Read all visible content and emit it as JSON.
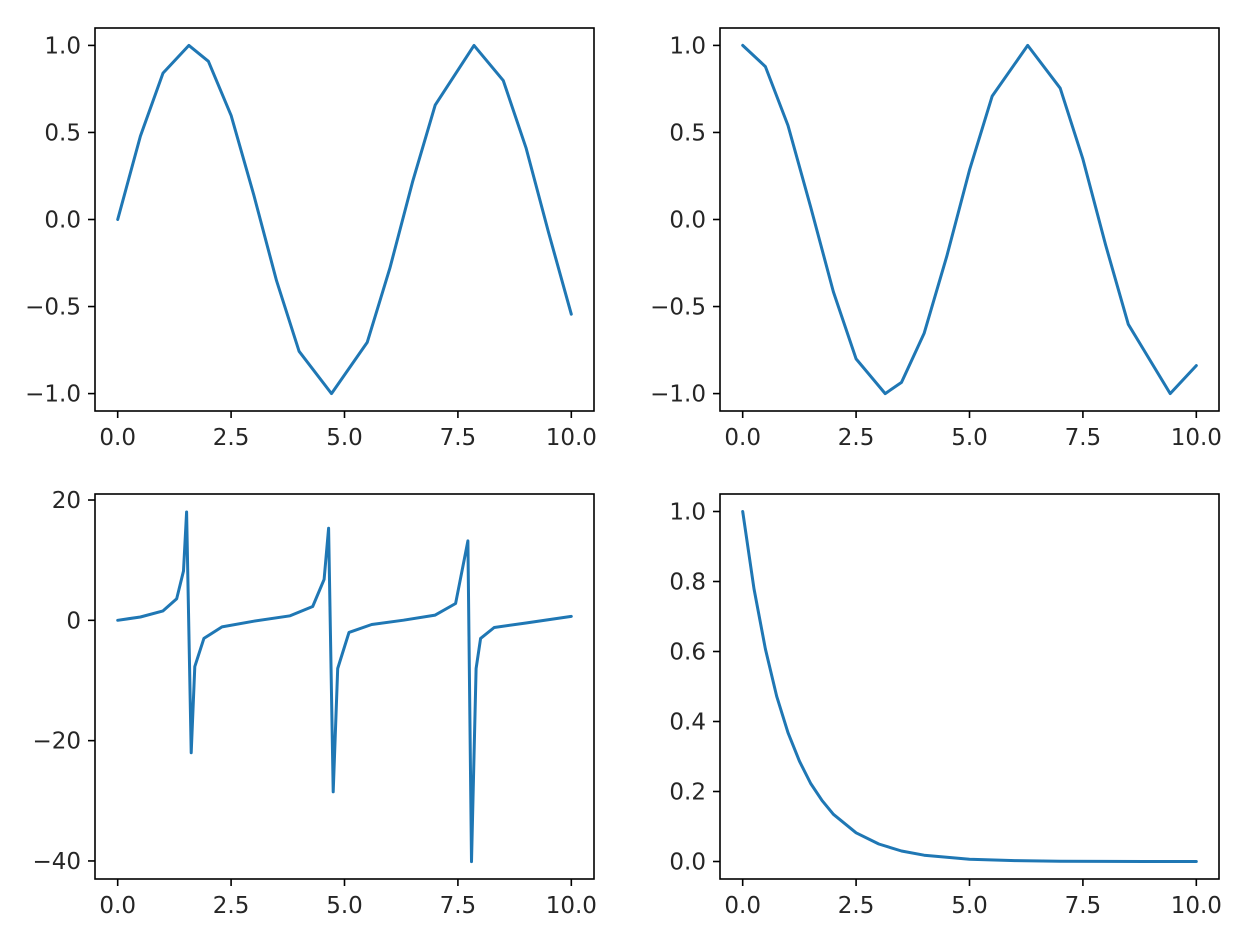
{
  "chart_data": [
    {
      "type": "line",
      "xlim": [
        -0.5,
        10.5
      ],
      "ylim": [
        -1.1,
        1.1
      ],
      "x_ticks": [
        0,
        2.5,
        5,
        7.5,
        10
      ],
      "y_ticks": [
        -1,
        -0.5,
        0,
        0.5,
        1
      ],
      "x_tick_labels": [
        "0.0",
        "2.5",
        "5.0",
        "7.5",
        "10.0"
      ],
      "y_tick_labels": [
        "−1.0",
        "−0.5",
        "0.0",
        "0.5",
        "1.0"
      ],
      "color": "#1f77b4",
      "x": [
        0.0,
        0.5,
        1.0,
        1.5708,
        2.0,
        2.5,
        3.0,
        3.5,
        4.0,
        4.7124,
        5.5,
        6.0,
        6.5,
        7.0,
        7.854,
        8.5,
        9.0,
        9.5,
        10.0
      ],
      "y": [
        0.0,
        0.479,
        0.841,
        1.0,
        0.909,
        0.598,
        0.141,
        -0.351,
        -0.757,
        -1.0,
        -0.706,
        -0.279,
        0.215,
        0.657,
        1.0,
        0.798,
        0.412,
        -0.075,
        -0.544
      ]
    },
    {
      "type": "line",
      "xlim": [
        -0.5,
        10.5
      ],
      "ylim": [
        -1.1,
        1.1
      ],
      "x_ticks": [
        0,
        2.5,
        5,
        7.5,
        10
      ],
      "y_ticks": [
        -1,
        -0.5,
        0,
        0.5,
        1
      ],
      "x_tick_labels": [
        "0.0",
        "2.5",
        "5.0",
        "7.5",
        "10.0"
      ],
      "y_tick_labels": [
        "−1.0",
        "−0.5",
        "0.0",
        "0.5",
        "1.0"
      ],
      "color": "#1f77b4",
      "x": [
        0.0,
        0.5,
        1.0,
        1.5,
        2.0,
        2.5,
        3.1416,
        3.5,
        4.0,
        4.5,
        5.0,
        5.5,
        6.2832,
        7.0,
        7.5,
        8.0,
        8.5,
        9.4248,
        10.0
      ],
      "y": [
        1.0,
        0.878,
        0.54,
        0.071,
        -0.416,
        -0.801,
        -1.0,
        -0.936,
        -0.654,
        -0.211,
        0.284,
        0.709,
        1.0,
        0.754,
        0.347,
        -0.146,
        -0.602,
        -1.0,
        -0.839
      ]
    },
    {
      "type": "line",
      "xlim": [
        -0.5,
        10.5
      ],
      "ylim": [
        -43,
        21
      ],
      "x_ticks": [
        0,
        2.5,
        5,
        7.5,
        10
      ],
      "y_ticks": [
        -40,
        -20,
        0,
        20
      ],
      "x_tick_labels": [
        "0.0",
        "2.5",
        "5.0",
        "7.5",
        "10.0"
      ],
      "y_tick_labels": [
        "−40",
        "−20",
        "0",
        "20"
      ],
      "color": "#1f77b4",
      "x": [
        0.0,
        0.5,
        1.0,
        1.3,
        1.45,
        1.52,
        1.62,
        1.7,
        1.9,
        2.3,
        3.0,
        3.8,
        4.3,
        4.55,
        4.65,
        4.75,
        4.85,
        5.1,
        5.6,
        6.3,
        7.0,
        7.45,
        7.72,
        7.8,
        7.9,
        8.0,
        8.3,
        9.0,
        10.0
      ],
      "y": [
        0.0,
        0.55,
        1.56,
        3.6,
        8.2,
        18.0,
        -22.0,
        -7.7,
        -3.0,
        -1.1,
        -0.14,
        0.75,
        2.3,
        6.8,
        15.3,
        -28.5,
        -8.0,
        -2.0,
        -0.7,
        0.02,
        0.87,
        2.8,
        13.2,
        -40.1,
        -8.0,
        -3.0,
        -1.2,
        -0.45,
        0.65
      ]
    },
    {
      "type": "line",
      "xlim": [
        -0.5,
        10.5
      ],
      "ylim": [
        -0.05,
        1.05
      ],
      "x_ticks": [
        0,
        2.5,
        5,
        7.5,
        10
      ],
      "y_ticks": [
        0,
        0.2,
        0.4,
        0.6,
        0.8,
        1
      ],
      "x_tick_labels": [
        "0.0",
        "2.5",
        "5.0",
        "7.5",
        "10.0"
      ],
      "y_tick_labels": [
        "0.0",
        "0.2",
        "0.4",
        "0.6",
        "0.8",
        "1.0"
      ],
      "color": "#1f77b4",
      "x": [
        0.0,
        0.25,
        0.5,
        0.75,
        1.0,
        1.25,
        1.5,
        1.75,
        2.0,
        2.5,
        3.0,
        3.5,
        4.0,
        5.0,
        6.0,
        7.0,
        8.0,
        9.0,
        10.0
      ],
      "y": [
        1.0,
        0.779,
        0.607,
        0.472,
        0.368,
        0.287,
        0.223,
        0.174,
        0.135,
        0.082,
        0.05,
        0.03,
        0.018,
        0.0067,
        0.0025,
        0.0009,
        0.0003,
        0.0001,
        0.0
      ]
    }
  ]
}
